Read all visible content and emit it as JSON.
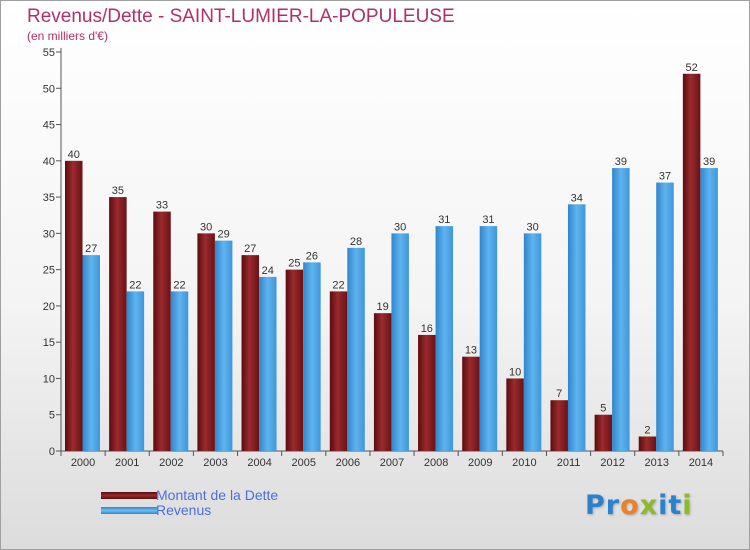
{
  "colors": {
    "dette": "#8c1f22",
    "revenus": "#4aa4e6",
    "title": "#b0306a",
    "legend_text": "#4a6fe0"
  },
  "chart_data": {
    "type": "bar",
    "title": "Revenus/Dette - SAINT-LUMIER-LA-POPULEUSE",
    "subtitle": "(en milliers d'€)",
    "categories": [
      "2000",
      "2001",
      "2002",
      "2003",
      "2004",
      "2005",
      "2006",
      "2007",
      "2008",
      "2009",
      "2010",
      "2011",
      "2012",
      "2013",
      "2014"
    ],
    "series": [
      {
        "name": "Montant de la Dette",
        "color_key": "dette",
        "values": [
          40,
          35,
          33,
          30,
          27,
          25,
          22,
          19,
          16,
          13,
          10,
          7,
          5,
          2,
          52
        ]
      },
      {
        "name": "Revenus",
        "color_key": "revenus",
        "values": [
          27,
          22,
          22,
          29,
          24,
          26,
          28,
          30,
          31,
          31,
          30,
          34,
          39,
          37,
          39
        ]
      }
    ],
    "ylim": [
      0,
      55
    ],
    "yticks": [
      0,
      5,
      10,
      15,
      20,
      25,
      30,
      35,
      40,
      45,
      50,
      55
    ],
    "grid": false,
    "legend_position": "bottom-left"
  },
  "logo": {
    "letters": [
      {
        "ch": "P",
        "color": "#2a82cf"
      },
      {
        "ch": "r",
        "color": "#2a82cf"
      },
      {
        "ch": "o",
        "color": "#e9822a"
      },
      {
        "ch": "x",
        "color": "#8bbb2a"
      },
      {
        "ch": "i",
        "color": "#2a82cf"
      },
      {
        "ch": "t",
        "color": "#2a82cf"
      },
      {
        "ch": "i",
        "color": "#8bbb2a"
      }
    ]
  }
}
